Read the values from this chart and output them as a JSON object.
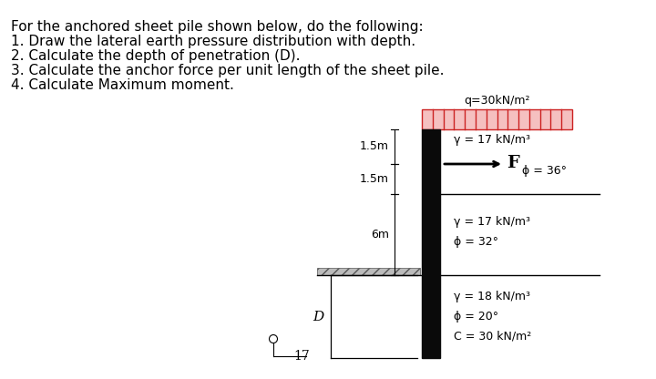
{
  "title_lines": [
    "For the anchored sheet pile shown below, do the following:",
    "1. Draw the lateral earth pressure distribution with depth.",
    "2. Calculate the depth of penetration (D).",
    "3. Calculate the anchor force per unit length of the sheet pile.",
    "4. Calculate Maximum moment."
  ],
  "surcharge_label": "q=30kN/m²",
  "layer1_top_label": "γ = 17 kN/m³",
  "anchor_F_label": "F",
  "phi36_label": "ϕ = 36°",
  "layer2_gamma_label": "γ = 17 kN/m³",
  "layer2_phi_label": "ϕ = 32°",
  "layer3_gamma_label": "γ = 18 kN/m³",
  "layer3_phi_label": "ϕ = 20°",
  "layer3_c_label": "C = 30 kN/m²",
  "dim1": "1.5m",
  "dim2": "1.5m",
  "dim3": "6m",
  "dim_D": "D",
  "pile_color": "#0a0a0a",
  "surcharge_bar_color": "#cc2222",
  "surcharge_fill": "#f5c0c0",
  "bg_color": "#ffffff",
  "text_color": "#000000",
  "num_17": "17",
  "title_fontsize": 11,
  "label_fontsize": 9
}
